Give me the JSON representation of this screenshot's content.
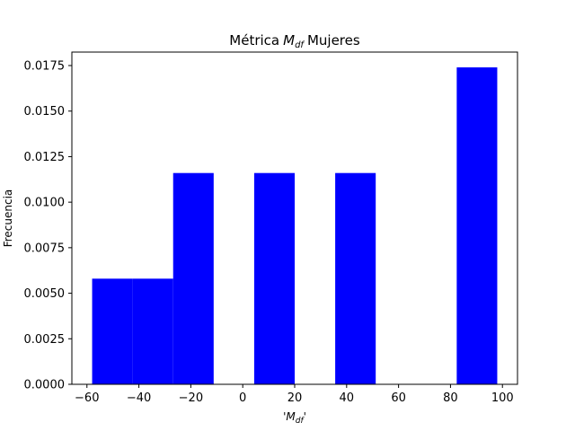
{
  "chart_data": {
    "type": "bar",
    "title": "Métrica",
    "title_math": "M",
    "title_math_sub": "df",
    "title_suffix": "Mujeres",
    "xlabel_prefix": "'",
    "xlabel_math": "M",
    "xlabel_math_sub": "df",
    "xlabel_suffix": "'",
    "ylabel": "Frecuencia",
    "bar_color": "#0000ff",
    "xlim": [
      -65.8,
      105.8
    ],
    "ylim": [
      0,
      0.01824
    ],
    "xticks": [
      -60,
      -40,
      -20,
      0,
      20,
      40,
      60,
      80,
      100
    ],
    "xtick_labels": [
      "−60",
      "−40",
      "−20",
      "0",
      "20",
      "40",
      "60",
      "80",
      "100"
    ],
    "yticks": [
      0,
      0.0025,
      0.005,
      0.0075,
      0.01,
      0.0125,
      0.015,
      0.0175
    ],
    "ytick_labels": [
      "0.0000",
      "0.0025",
      "0.0050",
      "0.0075",
      "0.0100",
      "0.0125",
      "0.0150",
      "0.0175"
    ],
    "bins": [
      {
        "x0": -58,
        "x1": -42.4,
        "value": 0.0058
      },
      {
        "x0": -42.4,
        "x1": -26.8,
        "value": 0.0058
      },
      {
        "x0": -26.8,
        "x1": -11.2,
        "value": 0.0116
      },
      {
        "x0": -11.2,
        "x1": 4.4,
        "value": 0
      },
      {
        "x0": 4.4,
        "x1": 20,
        "value": 0.0116
      },
      {
        "x0": 20,
        "x1": 35.6,
        "value": 0
      },
      {
        "x0": 35.6,
        "x1": 51.2,
        "value": 0.0116
      },
      {
        "x0": 51.2,
        "x1": 66.8,
        "value": 0
      },
      {
        "x0": 66.8,
        "x1": 82.4,
        "value": 0
      },
      {
        "x0": 82.4,
        "x1": 98,
        "value": 0.0174
      }
    ]
  }
}
